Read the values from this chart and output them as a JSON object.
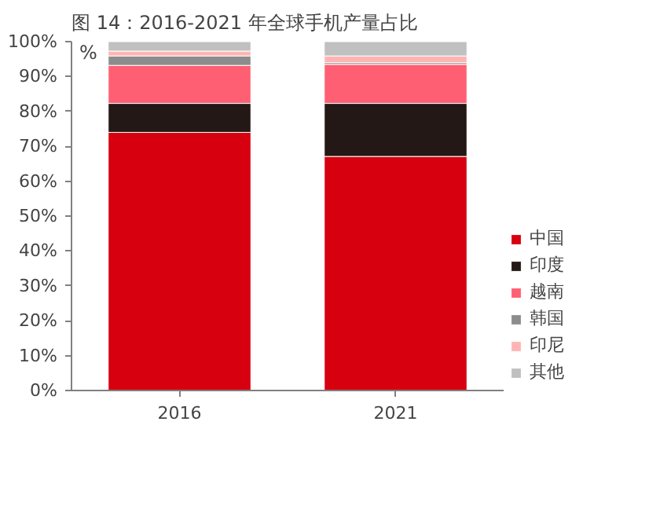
{
  "chart_data": {
    "type": "bar",
    "stacked": true,
    "title": "图 14：2016-2021 年全球手机产量占比",
    "ylabel": "%",
    "categories": [
      "2016",
      "2021"
    ],
    "series": [
      {
        "name": "中国",
        "color": "#d7000f",
        "values": [
          74,
          67.1
        ]
      },
      {
        "name": "印度",
        "color": "#231815",
        "values": [
          8.3,
          15.2
        ]
      },
      {
        "name": "越南",
        "color": "#ff5f73",
        "values": [
          10.9,
          11.2
        ]
      },
      {
        "name": "韩国",
        "color": "#8c8c8c",
        "values": [
          2.7,
          0.5
        ]
      },
      {
        "name": "印尼",
        "color": "#ffb4b4",
        "values": [
          1.4,
          1.9
        ]
      },
      {
        "name": "其他",
        "color": "#c0c0c0",
        "values": [
          2.7,
          4.1
        ]
      }
    ],
    "ylim": [
      0,
      100
    ],
    "yticks": [
      {
        "value": 0,
        "label": "0%"
      },
      {
        "value": 10,
        "label": "10%"
      },
      {
        "value": 20,
        "label": "20%"
      },
      {
        "value": 30,
        "label": "30%"
      },
      {
        "value": 40,
        "label": "40%"
      },
      {
        "value": 50,
        "label": "50%"
      },
      {
        "value": 60,
        "label": "60%"
      },
      {
        "value": 70,
        "label": "70%"
      },
      {
        "value": 80,
        "label": "80%"
      },
      {
        "value": 90,
        "label": "90%"
      },
      {
        "value": 100,
        "label": "100%"
      }
    ],
    "grid": false,
    "legend": "right"
  }
}
